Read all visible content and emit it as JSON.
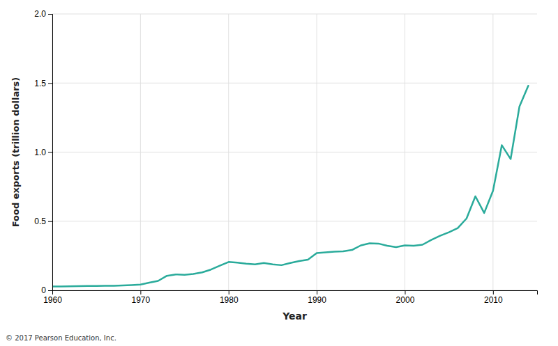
{
  "chart_data": {
    "type": "line",
    "xlabel": "Year",
    "ylabel": "Food exports (trillion dollars)",
    "footnote": "© 2017 Pearson Education, Inc.",
    "color": "#2aab9b",
    "grid": true,
    "xlim": [
      1960,
      2015
    ],
    "ylim": [
      0,
      2.0
    ],
    "xticks": [
      1960,
      1970,
      1980,
      1990,
      2000,
      2010
    ],
    "yticks": [
      0,
      0.5,
      {
        "value": 1,
        "label": "1.0"
      },
      1.5,
      {
        "value": 2,
        "label": "2.0"
      }
    ],
    "x": [
      1960,
      1961,
      1962,
      1963,
      1964,
      1965,
      1966,
      1967,
      1968,
      1969,
      1970,
      1971,
      1972,
      1973,
      1974,
      1975,
      1976,
      1977,
      1978,
      1979,
      1980,
      1981,
      1982,
      1983,
      1984,
      1985,
      1986,
      1987,
      1988,
      1989,
      1990,
      1991,
      1992,
      1993,
      1994,
      1995,
      1996,
      1997,
      1998,
      1999,
      2000,
      2001,
      2002,
      2003,
      2004,
      2005,
      2006,
      2007,
      2008,
      2009,
      2010,
      2011,
      2012,
      2013,
      2014
    ],
    "values": [
      0.028,
      0.028,
      0.029,
      0.03,
      0.031,
      0.032,
      0.033,
      0.033,
      0.035,
      0.038,
      0.042,
      0.055,
      0.068,
      0.105,
      0.115,
      0.112,
      0.118,
      0.13,
      0.15,
      0.178,
      0.205,
      0.2,
      0.193,
      0.188,
      0.198,
      0.188,
      0.182,
      0.198,
      0.212,
      0.222,
      0.27,
      0.275,
      0.28,
      0.282,
      0.292,
      0.325,
      0.34,
      0.338,
      0.322,
      0.312,
      0.325,
      0.322,
      0.33,
      0.365,
      0.395,
      0.42,
      0.45,
      0.52,
      0.68,
      0.56,
      0.72,
      1.05,
      0.95,
      1.33,
      1.48
    ]
  }
}
